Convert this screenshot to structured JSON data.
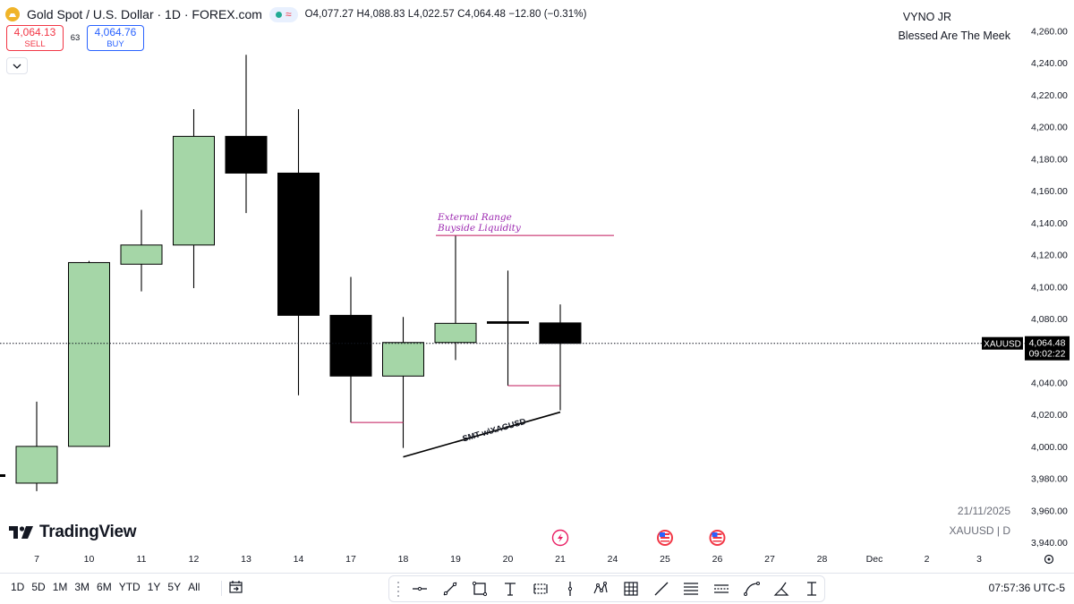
{
  "header": {
    "title": "Gold Spot / U.S. Dollar · 1D · FOREX.com",
    "ohlc": "O4,077.27 H4,088.83 L4,022.57 C4,064.48 −12.80 (−0.31%)",
    "status_icon": "market-open-dot",
    "wave_icon": "≈"
  },
  "trade": {
    "sell_price": "4,064.13",
    "sell_label": "SELL",
    "spread": "63",
    "buy_price": "4,064.76",
    "buy_label": "BUY"
  },
  "author": {
    "name": "VYNO JR",
    "tagline": "Blessed Are The Meek"
  },
  "info": {
    "date": "21/11/2025",
    "symbol_line": "XAUUSD | D"
  },
  "brand": {
    "logo_text": "TradingView"
  },
  "price_tag": {
    "symbol": "XAUUSD",
    "price": "4,064.48",
    "countdown": "09:02:22"
  },
  "colors": {
    "bull": "#a5d6a7",
    "bear": "#000000",
    "annotation": "#c2185b",
    "annotation_text": "#9c27b0",
    "sell": "#f23645",
    "buy": "#2962ff"
  },
  "bottom": {
    "ranges": [
      "1D",
      "5D",
      "1M",
      "3M",
      "6M",
      "YTD",
      "1Y",
      "5Y",
      "All"
    ],
    "clock": "07:57:36 UTC-5"
  },
  "tools": [
    "horizontal-line-icon",
    "trend-line-icon",
    "rectangle-icon",
    "text-icon",
    "position-icon",
    "vertical-line-icon",
    "pattern-icon",
    "grid-icon",
    "line-icon",
    "fib-icon",
    "channel-icon",
    "curve-icon",
    "brush-icon",
    "measure-icon"
  ],
  "chart_data": {
    "type": "candlestick",
    "x_tick_labels": [
      "7",
      "10",
      "11",
      "12",
      "13",
      "14",
      "17",
      "18",
      "19",
      "20",
      "21",
      "24",
      "25",
      "26",
      "27",
      "28",
      "Dec",
      "2",
      "3"
    ],
    "y_tick_labels": [
      "4,260.00",
      "4,240.00",
      "4,220.00",
      "4,200.00",
      "4,180.00",
      "4,160.00",
      "4,140.00",
      "4,120.00",
      "4,100.00",
      "4,080.00",
      "4,040.00",
      "4,020.00",
      "4,000.00",
      "3,980.00",
      "3,960.00",
      "3,940.00"
    ],
    "ylim": [
      3936,
      4272
    ],
    "last_price": 4064.48,
    "candles": [
      {
        "date": "7",
        "open": 3977,
        "high": 4028,
        "low": 3972,
        "close": 4000
      },
      {
        "date": "10",
        "open": 4000,
        "high": 4116,
        "low": 4000,
        "close": 4115
      },
      {
        "date": "11",
        "open": 4114,
        "high": 4148,
        "low": 4097,
        "close": 4126
      },
      {
        "date": "12",
        "open": 4126,
        "high": 4211,
        "low": 4099,
        "close": 4194
      },
      {
        "date": "13",
        "open": 4194,
        "high": 4245,
        "low": 4146,
        "close": 4171
      },
      {
        "date": "14",
        "open": 4171,
        "high": 4211,
        "low": 4032,
        "close": 4082
      },
      {
        "date": "17",
        "open": 4082,
        "high": 4106,
        "low": 4015,
        "close": 4044
      },
      {
        "date": "18",
        "open": 4044,
        "high": 4081,
        "low": 3999,
        "close": 4065
      },
      {
        "date": "19",
        "open": 4065,
        "high": 4132,
        "low": 4054,
        "close": 4077
      },
      {
        "date": "20",
        "open": 4078,
        "high": 4110,
        "low": 4038,
        "close": 4077
      },
      {
        "date": "21",
        "open": 4077.27,
        "high": 4088.83,
        "low": 4022.57,
        "close": 4064.48
      }
    ],
    "annotations": {
      "buyside_label_line1": "External Range",
      "buyside_label_line2": "Buyside Liquidity",
      "buyside_level": 4132,
      "smt_label": "SMT w\\XAGUSD"
    },
    "event_markers": [
      {
        "date": "21",
        "icon": "lightning-icon"
      },
      {
        "date": "25",
        "icon": "us-flag-icon"
      },
      {
        "date": "26",
        "icon": "us-flag-icon"
      }
    ]
  }
}
